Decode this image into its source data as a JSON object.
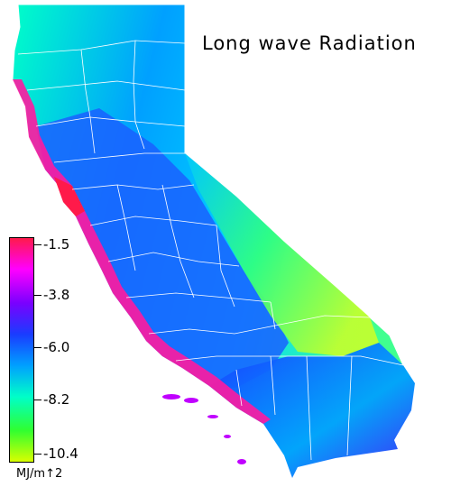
{
  "title": "Long wave Radiation",
  "legend": {
    "units": "MJ/m↑2",
    "ticks": [
      "-1.5",
      "-3.8",
      "-6.0",
      "-8.2",
      "-10.4"
    ],
    "min": -10.4,
    "max": -1.5,
    "colors": [
      "#ff1a4a",
      "#ff00ff",
      "#7a00ff",
      "#1a3cff",
      "#00a0ff",
      "#00ffc8",
      "#30ff30",
      "#d8ff00"
    ]
  },
  "map": {
    "region": "California",
    "palette": {
      "coast": "#ff1aa0",
      "north": "#1a8cff",
      "central_valley": "#1a60ff",
      "sierra": "#00b0ff",
      "desert": "#90ff40",
      "south": "#1a50ff",
      "border": "#ffffff"
    }
  }
}
